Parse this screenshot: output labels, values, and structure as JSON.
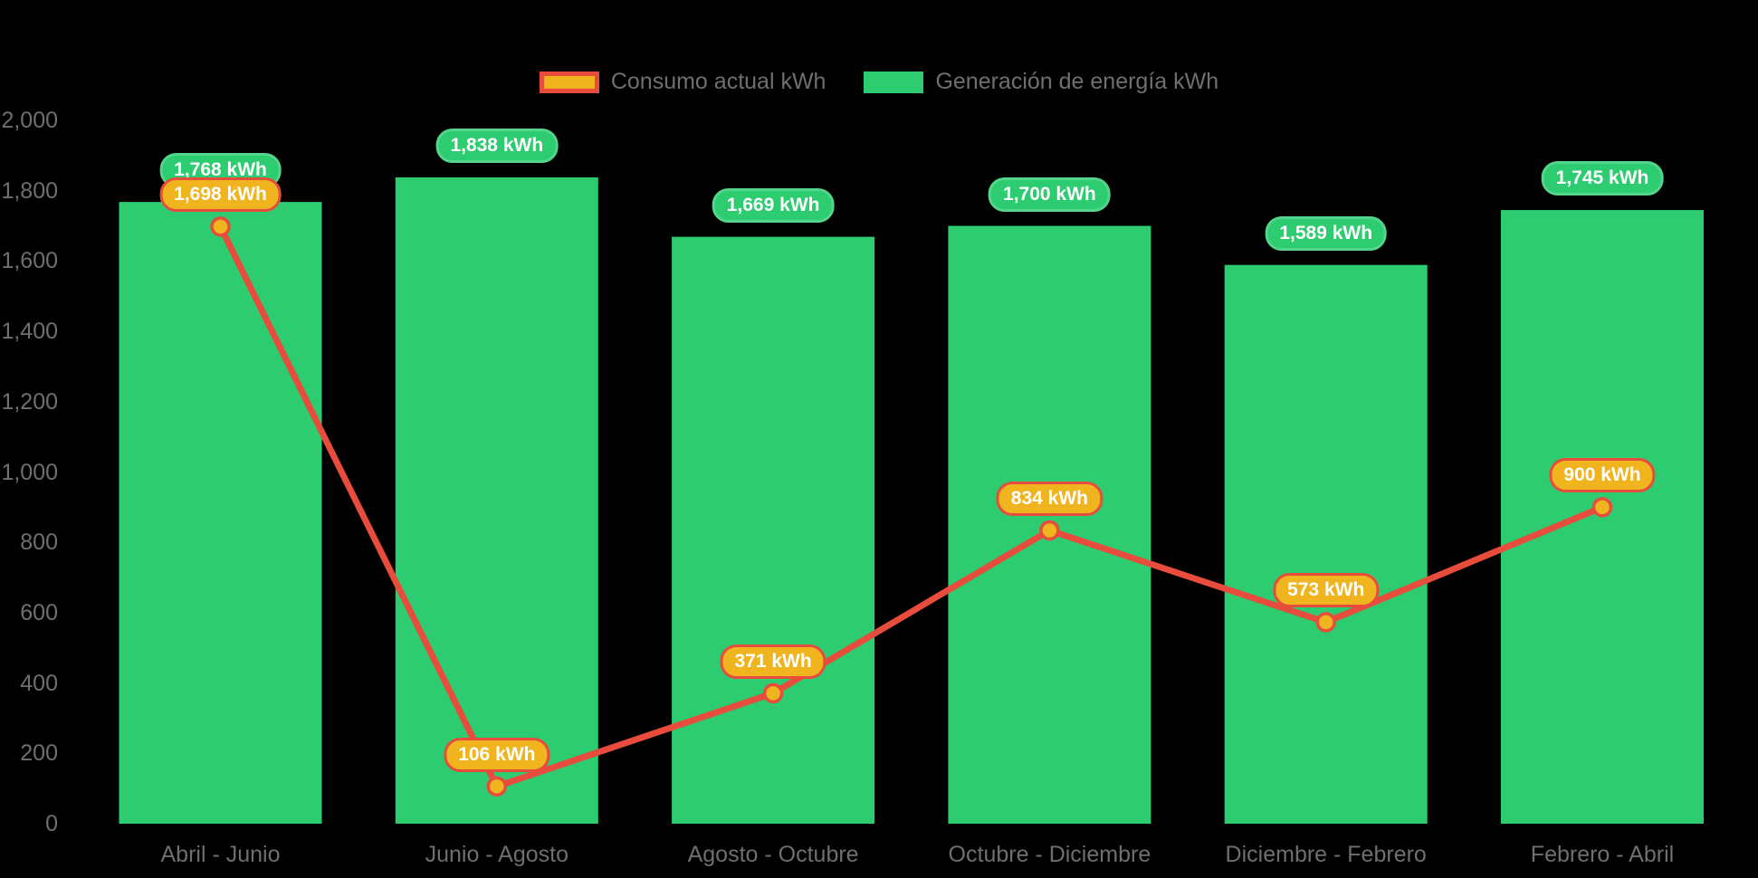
{
  "background_color": "#000000",
  "legend": {
    "items": [
      {
        "label": "Consumo actual kWh",
        "swatch_fill": "#f0b41f",
        "swatch_border": "#e74c3c"
      },
      {
        "label": "Generación de energía kWh",
        "swatch_fill": "#2ecc71",
        "swatch_border": "#2ecc71"
      }
    ]
  },
  "chart_data": {
    "type": "combo",
    "title": "",
    "xlabel": "",
    "ylabel": "",
    "grid": false,
    "legend_position": "top-center",
    "axis_text_color": "#6f6f6f",
    "ylim": [
      0,
      2000
    ],
    "y_ticks": [
      {
        "value": 2000,
        "label": "2,000"
      },
      {
        "value": 1800,
        "label": "1,800"
      },
      {
        "value": 1600,
        "label": "1,600"
      },
      {
        "value": 1400,
        "label": "1,400"
      },
      {
        "value": 1200,
        "label": "1,200"
      },
      {
        "value": 1000,
        "label": "1,000"
      },
      {
        "value": 800,
        "label": "800"
      },
      {
        "value": 600,
        "label": "600"
      },
      {
        "value": 400,
        "label": "400"
      },
      {
        "value": 200,
        "label": "200"
      },
      {
        "value": 0,
        "label": "0"
      }
    ],
    "categories": [
      "Abril - Junio",
      "Junio - Agosto",
      "Agosto - Octubre",
      "Octubre - Diciembre",
      "Diciembre - Febrero",
      "Febrero - Abril"
    ],
    "series": [
      {
        "name": "Generación de energía kWh",
        "type": "bar",
        "color": "#2ecc71",
        "values": [
          1768,
          1838,
          1669,
          1700,
          1589,
          1745
        ],
        "labels": [
          "1,768 kWh",
          "1,838 kWh",
          "1,669 kWh",
          "1,700 kWh",
          "1,589 kWh",
          "1,745 kWh"
        ]
      },
      {
        "name": "Consumo actual kWh",
        "type": "line",
        "color": "#e74c3c",
        "marker_fill": "#f0b41f",
        "marker_stroke": "#e74c3c",
        "values": [
          1698,
          106,
          371,
          834,
          573,
          900
        ],
        "labels": [
          "1,698 kWh",
          "106 kWh",
          "371 kWh",
          "834 kWh",
          "573 kWh",
          "900 kWh"
        ]
      }
    ]
  }
}
